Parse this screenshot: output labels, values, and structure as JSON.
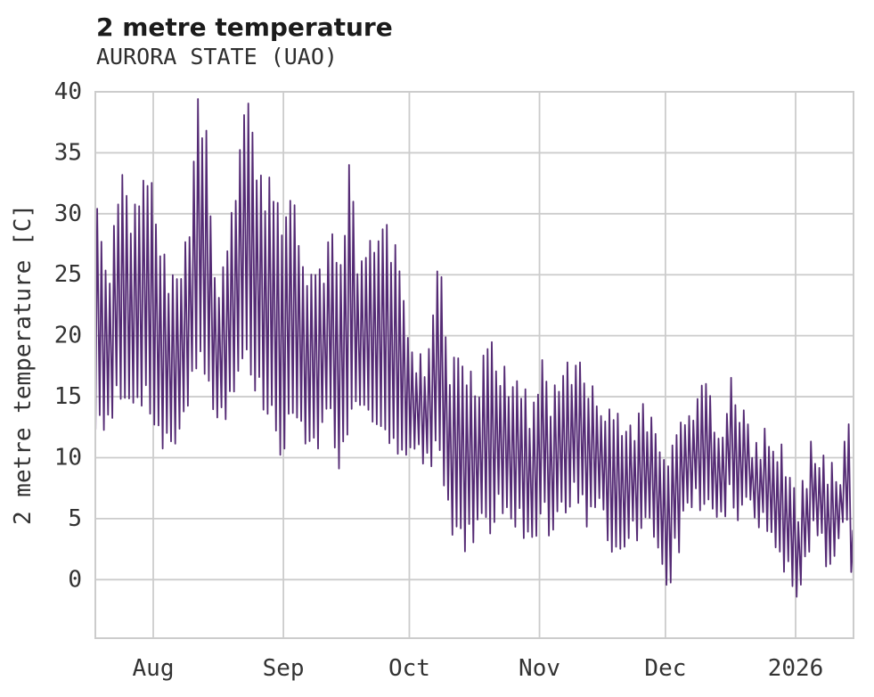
{
  "title": "2 metre temperature",
  "subtitle": "AURORA STATE (UAO)",
  "chart_data": {
    "type": "line",
    "title": "2 metre temperature",
    "subtitle": "AURORA STATE (UAO)",
    "xlabel": "",
    "ylabel": "2 metre temperature [C]",
    "series_name": "2 metre temperature",
    "units": "degrees Celsius",
    "line_color": "#542a74",
    "grid": true,
    "grid_color": "#cccccc",
    "background": "#ffffff",
    "text_color": "#333333",
    "ylim": [
      -4.8,
      40
    ],
    "yticks": [
      0,
      5,
      10,
      15,
      20,
      25,
      30,
      35,
      40
    ],
    "x_axis": {
      "start_date": "2025-07-17",
      "end_date": "2026-01-16",
      "tick_dates": [
        "2025-08-01",
        "2025-09-01",
        "2025-10-01",
        "2025-11-01",
        "2025-12-01",
        "2026-01-01"
      ],
      "tick_labels": [
        "Aug",
        "Sep",
        "Oct",
        "Nov",
        "Dec",
        "2026"
      ]
    },
    "sampling": "sub-daily series with diurnal cycle; values below are [date, daily_max_C, daily_min_C] envelope keypoints read from the plot",
    "daily_envelope": [
      [
        "2025-07-18",
        29.5,
        13.0
      ],
      [
        "2025-07-20",
        24.0,
        13.5
      ],
      [
        "2025-07-22",
        27.0,
        14.5
      ],
      [
        "2025-07-24",
        33.4,
        15.0
      ],
      [
        "2025-07-26",
        28.5,
        14.0
      ],
      [
        "2025-07-28",
        30.5,
        15.5
      ],
      [
        "2025-07-30",
        33.0,
        15.0
      ],
      [
        "2025-08-01",
        29.5,
        13.5
      ],
      [
        "2025-08-03",
        26.5,
        11.5
      ],
      [
        "2025-08-05",
        23.5,
        11.0
      ],
      [
        "2025-08-07",
        25.0,
        13.0
      ],
      [
        "2025-08-09",
        28.5,
        15.0
      ],
      [
        "2025-08-11",
        37.9,
        18.0
      ],
      [
        "2025-08-12",
        37.4,
        19.0
      ],
      [
        "2025-08-13",
        36.3,
        17.0
      ],
      [
        "2025-08-15",
        25.0,
        14.5
      ],
      [
        "2025-08-17",
        24.5,
        13.5
      ],
      [
        "2025-08-19",
        28.5,
        15.0
      ],
      [
        "2025-08-21",
        33.5,
        17.0
      ],
      [
        "2025-08-22",
        38.2,
        18.5
      ],
      [
        "2025-08-23",
        37.9,
        18.0
      ],
      [
        "2025-08-25",
        33.6,
        16.0
      ],
      [
        "2025-08-27",
        31.6,
        14.5
      ],
      [
        "2025-08-29",
        32.2,
        13.5
      ],
      [
        "2025-08-31",
        28.5,
        10.0
      ],
      [
        "2025-09-02",
        32.3,
        13.0
      ],
      [
        "2025-09-04",
        28.4,
        13.5
      ],
      [
        "2025-09-06",
        24.5,
        12.0
      ],
      [
        "2025-09-08",
        24.0,
        10.5
      ],
      [
        "2025-09-10",
        25.5,
        13.0
      ],
      [
        "2025-09-12",
        27.5,
        14.0
      ],
      [
        "2025-09-14",
        23.5,
        8.6
      ],
      [
        "2025-09-16",
        33.4,
        13.0
      ],
      [
        "2025-09-18",
        26.5,
        13.5
      ],
      [
        "2025-09-20",
        27.3,
        13.0
      ],
      [
        "2025-09-22",
        26.3,
        12.5
      ],
      [
        "2025-09-24",
        30.6,
        14.0
      ],
      [
        "2025-09-26",
        26.5,
        12.0
      ],
      [
        "2025-09-28",
        25.4,
        11.0
      ],
      [
        "2025-09-30",
        21.5,
        10.0
      ],
      [
        "2025-10-02",
        18.0,
        11.0
      ],
      [
        "2025-10-04",
        17.5,
        9.5
      ],
      [
        "2025-10-06",
        22.3,
        9.0
      ],
      [
        "2025-10-07",
        25.7,
        11.0
      ],
      [
        "2025-10-08",
        25.6,
        10.0
      ],
      [
        "2025-10-10",
        16.5,
        5.5
      ],
      [
        "2025-10-12",
        17.9,
        4.0
      ],
      [
        "2025-10-14",
        17.0,
        2.7
      ],
      [
        "2025-10-16",
        15.5,
        4.5
      ],
      [
        "2025-10-18",
        17.0,
        5.5
      ],
      [
        "2025-10-20",
        18.0,
        5.0
      ],
      [
        "2025-10-22",
        16.8,
        6.0
      ],
      [
        "2025-10-24",
        15.5,
        7.0
      ],
      [
        "2025-10-26",
        15.8,
        4.9
      ],
      [
        "2025-10-28",
        14.5,
        4.5
      ],
      [
        "2025-10-30",
        13.5,
        3.3
      ],
      [
        "2025-11-01",
        17.0,
        5.5
      ],
      [
        "2025-11-03",
        15.0,
        4.5
      ],
      [
        "2025-11-05",
        14.2,
        5.5
      ],
      [
        "2025-11-07",
        17.3,
        6.5
      ],
      [
        "2025-11-09",
        17.5,
        7.0
      ],
      [
        "2025-11-11",
        16.0,
        6.0
      ],
      [
        "2025-11-13",
        14.5,
        5.0
      ],
      [
        "2025-11-15",
        15.2,
        5.5
      ],
      [
        "2025-11-17",
        12.8,
        2.8
      ],
      [
        "2025-11-19",
        12.5,
        2.0
      ],
      [
        "2025-11-21",
        12.6,
        3.5
      ],
      [
        "2025-11-23",
        11.5,
        4.0
      ],
      [
        "2025-11-25",
        14.0,
        4.5
      ],
      [
        "2025-11-27",
        12.5,
        4.0
      ],
      [
        "2025-11-29",
        12.0,
        2.9
      ],
      [
        "2025-12-01",
        8.5,
        -0.1
      ],
      [
        "2025-12-03",
        11.0,
        2.5
      ],
      [
        "2025-12-05",
        13.7,
        5.0
      ],
      [
        "2025-12-07",
        14.0,
        6.5
      ],
      [
        "2025-12-09",
        16.2,
        7.0
      ],
      [
        "2025-12-11",
        16.0,
        5.5
      ],
      [
        "2025-12-13",
        11.5,
        4.9
      ],
      [
        "2025-12-15",
        13.5,
        6.0
      ],
      [
        "2025-12-16",
        15.5,
        7.0
      ],
      [
        "2025-12-18",
        13.8,
        5.5
      ],
      [
        "2025-12-20",
        12.0,
        5.9
      ],
      [
        "2025-12-22",
        10.5,
        4.4
      ],
      [
        "2025-12-24",
        11.0,
        5.0
      ],
      [
        "2025-12-26",
        10.9,
        4.5
      ],
      [
        "2025-12-28",
        9.7,
        2.7
      ],
      [
        "2025-12-30",
        8.6,
        0.5
      ],
      [
        "2025-12-31",
        7.5,
        -0.5
      ],
      [
        "2026-01-01",
        5.5,
        -2.7
      ],
      [
        "2026-01-03",
        8.8,
        2.5
      ],
      [
        "2026-01-05",
        10.8,
        4.5
      ],
      [
        "2026-01-07",
        9.2,
        2.7
      ],
      [
        "2026-01-09",
        8.1,
        1.7
      ],
      [
        "2026-01-11",
        9.0,
        4.0
      ],
      [
        "2026-01-13",
        12.3,
        5.1
      ],
      [
        "2026-01-14",
        5.0,
        -0.5
      ]
    ],
    "end_value": -0.9,
    "render": {
      "noise_seed": 7,
      "hi_jitter": 1.6,
      "lo_jitter": 1.3
    }
  }
}
